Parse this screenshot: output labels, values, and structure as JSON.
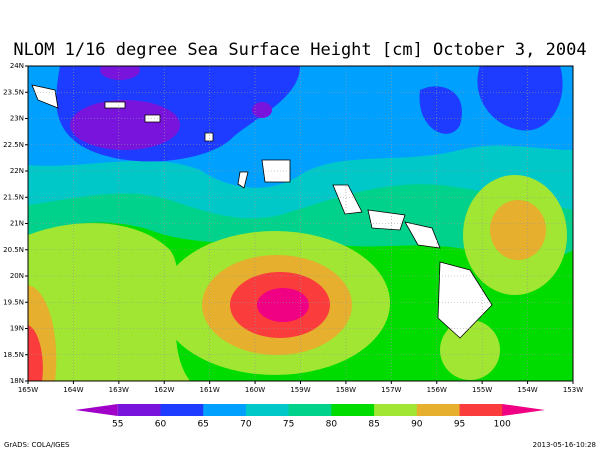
{
  "chart_data": {
    "type": "contour-map",
    "title": "NLOM 1/16 degree Sea Surface Height [cm] October 3, 2004",
    "xlim": [
      -165,
      -153
    ],
    "ylim": [
      18,
      24
    ],
    "xticks": [
      {
        "value": -165,
        "label": "165W"
      },
      {
        "value": -164,
        "label": "164W"
      },
      {
        "value": -163,
        "label": "163W"
      },
      {
        "value": -162,
        "label": "162W"
      },
      {
        "value": -161,
        "label": "161W"
      },
      {
        "value": -160,
        "label": "160W"
      },
      {
        "value": -159,
        "label": "159W"
      },
      {
        "value": -158,
        "label": "158W"
      },
      {
        "value": -157,
        "label": "157W"
      },
      {
        "value": -156,
        "label": "156W"
      },
      {
        "value": -155,
        "label": "155W"
      },
      {
        "value": -154,
        "label": "154W"
      },
      {
        "value": -153,
        "label": "153W"
      }
    ],
    "yticks": [
      {
        "value": 18,
        "label": "18N"
      },
      {
        "value": 18.5,
        "label": "18.5N"
      },
      {
        "value": 19,
        "label": "19N"
      },
      {
        "value": 19.5,
        "label": "19.5N"
      },
      {
        "value": 20,
        "label": "20N"
      },
      {
        "value": 20.5,
        "label": "20.5N"
      },
      {
        "value": 21,
        "label": "21N"
      },
      {
        "value": 21.5,
        "label": "21.5N"
      },
      {
        "value": 22,
        "label": "22N"
      },
      {
        "value": 22.5,
        "label": "22.5N"
      },
      {
        "value": 23,
        "label": "23N"
      },
      {
        "value": 23.5,
        "label": "23.5N"
      },
      {
        "value": 24,
        "label": "24N"
      }
    ],
    "grid": true,
    "colorbar": {
      "levels": [
        55,
        60,
        65,
        70,
        75,
        80,
        85,
        90,
        95,
        100
      ],
      "colors": [
        "#a000c8",
        "#7814dc",
        "#1e3cff",
        "#00a0ff",
        "#00c8c8",
        "#00d28c",
        "#00dc00",
        "#a0e632",
        "#e6af2d",
        "#fa3c3c",
        "#f00082"
      ]
    },
    "footer_left": "GrADS: COLA/IGES",
    "footer_right": "2013-05-16-10:28"
  }
}
